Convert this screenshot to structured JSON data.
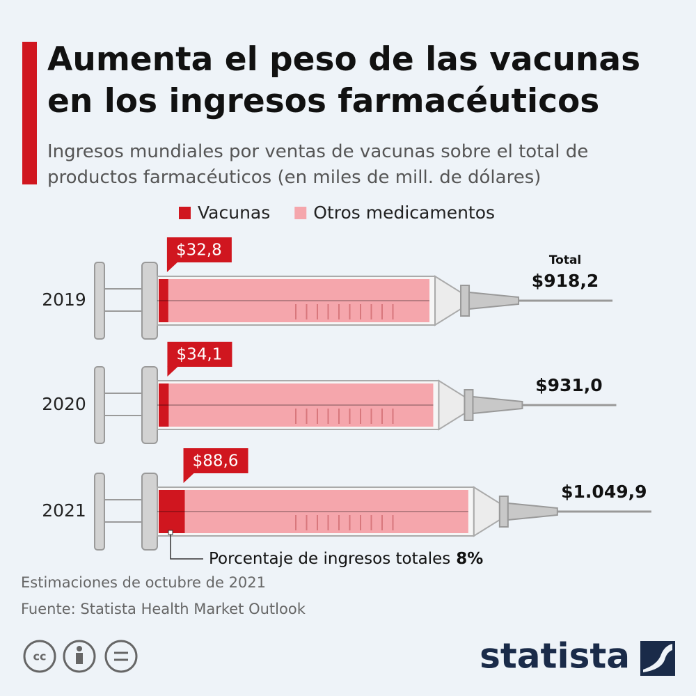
{
  "chart_data": {
    "type": "syringe-bar",
    "title": "Aumenta el peso de las vacunas en los ingresos farmacéuticos",
    "subtitle": "Ingresos mundiales por ventas de vacunas sobre el total de productos farmacéuticos (en miles de mill. de dólares)",
    "categories": [
      "2019",
      "2020",
      "2021"
    ],
    "series": [
      {
        "name": "Vacunas",
        "color": "#d0161f",
        "values": [
          32.8,
          34.1,
          88.6
        ],
        "value_labels": [
          "$32,8",
          "$34,1",
          "$88,6"
        ]
      },
      {
        "name": "Otros medicamentos",
        "color": "#f5a6ac",
        "values": [
          885.4,
          896.9,
          961.3
        ]
      }
    ],
    "totals_title": "Total",
    "totals": [
      918.2,
      931.0,
      1049.9
    ],
    "total_labels": [
      "$918,2",
      "$931,0",
      "$1.049,9"
    ],
    "annotation": "Porcentaje de ingresos totales",
    "annotation_value": "8%",
    "notes": "Estimaciones de octubre de 2021",
    "source": "Fuente: Statista Health Market Outlook",
    "brand": "statista"
  }
}
